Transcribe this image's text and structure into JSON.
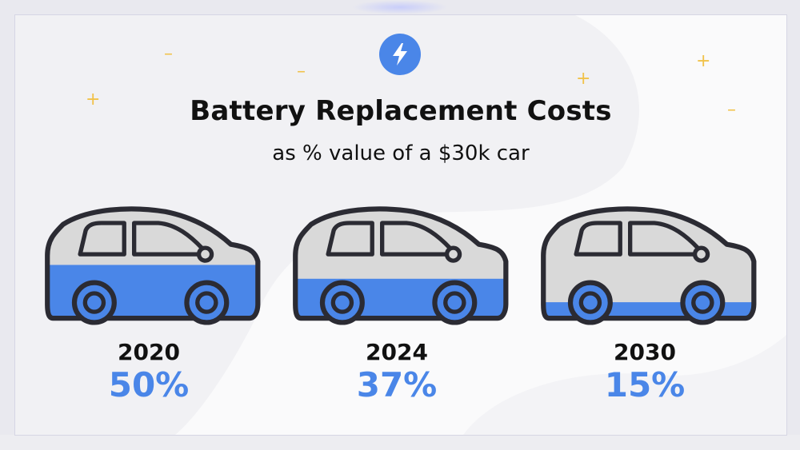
{
  "colors": {
    "accent": "#4a86e8",
    "car_body": "#d9d9d9",
    "outline": "#2b2b33",
    "sparkle": "#f1c24a",
    "text": "#111111"
  },
  "badge_icon": "lightning-bolt-icon",
  "chart_data": {
    "type": "bar",
    "title": "Battery Replacement Costs",
    "subtitle": "as % value of a $30k car",
    "categories": [
      "2020",
      "2024",
      "2030"
    ],
    "values": [
      50,
      37,
      15
    ],
    "value_labels": [
      "50%",
      "37%",
      "15%"
    ],
    "ylim": [
      0,
      100
    ]
  }
}
